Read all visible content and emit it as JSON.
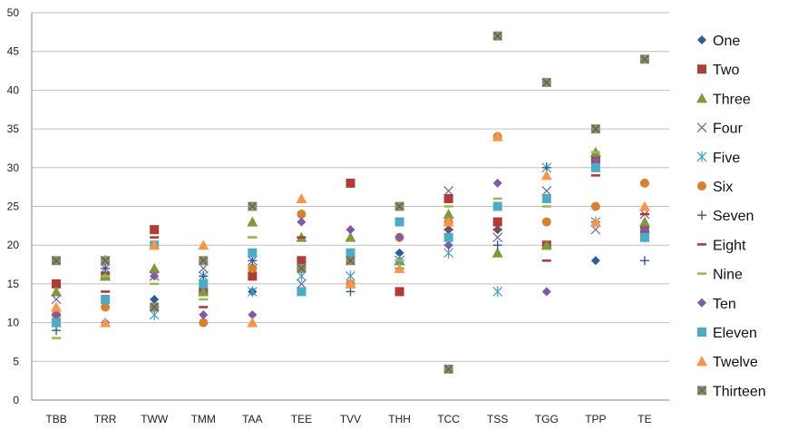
{
  "chart_data": {
    "type": "scatter",
    "title": "",
    "xlabel": "",
    "ylabel": "",
    "categories": [
      "TBB",
      "TRR",
      "TWW",
      "TMM",
      "TAA",
      "TEE",
      "TVV",
      "THH",
      "TCC",
      "TSS",
      "TGG",
      "TPP",
      "TE"
    ],
    "ylim": [
      0,
      50
    ],
    "yticks": [
      0,
      5,
      10,
      15,
      20,
      25,
      30,
      35,
      40,
      45,
      50
    ],
    "grid": "horizontal",
    "legend_position": "right",
    "series": [
      {
        "name": "One",
        "color": "#2E5C9A",
        "marker": "diamond",
        "values": [
          15,
          10,
          13,
          14,
          14,
          17,
          18,
          19,
          22,
          22,
          20,
          18,
          22
        ]
      },
      {
        "name": "Two",
        "color": "#B23B36",
        "marker": "square",
        "values": [
          15,
          16,
          22,
          14,
          16,
          18,
          28,
          14,
          26,
          23,
          20,
          31,
          22
        ]
      },
      {
        "name": "Three",
        "color": "#7E9A3A",
        "marker": "triangle",
        "values": [
          14,
          16,
          17,
          14,
          23,
          21,
          21,
          18,
          24,
          19,
          20,
          32,
          23
        ]
      },
      {
        "name": "Four",
        "color": "#7060A8",
        "marker": "x",
        "values": [
          13,
          17,
          16,
          17,
          18,
          15,
          18,
          18,
          27,
          21,
          27,
          22,
          24
        ]
      },
      {
        "name": "Five",
        "color": "#3E9EC2",
        "marker": "asterisk",
        "values": [
          10,
          18,
          11,
          16,
          14,
          16,
          16,
          18,
          19,
          14,
          30,
          23,
          21
        ]
      },
      {
        "name": "Six",
        "color": "#D4822E",
        "marker": "circle",
        "values": [
          11,
          12,
          12,
          10,
          17,
          24,
          15,
          21,
          23,
          34,
          23,
          25,
          28
        ]
      },
      {
        "name": "Seven",
        "color": "#2E5C9A",
        "marker": "plus",
        "values": [
          9,
          17,
          12,
          16,
          18,
          17,
          14,
          17,
          20,
          20,
          30,
          23,
          18
        ]
      },
      {
        "name": "Eight",
        "color": "#B23B36",
        "marker": "dash",
        "values": [
          11,
          14,
          21,
          12,
          21,
          21,
          18,
          18,
          22,
          22,
          18,
          29,
          24
        ]
      },
      {
        "name": "Nine",
        "color": "#9BBB59",
        "marker": "dash",
        "values": [
          8,
          16,
          15,
          13,
          21,
          17,
          18,
          18,
          25,
          26,
          25,
          32,
          22
        ]
      },
      {
        "name": "Ten",
        "color": "#7E5AA8",
        "marker": "diamond",
        "values": [
          11,
          10,
          16,
          11,
          11,
          23,
          22,
          21,
          20,
          28,
          14,
          31,
          22
        ]
      },
      {
        "name": "Eleven",
        "color": "#4BACC6",
        "marker": "square",
        "values": [
          10,
          13,
          20,
          15,
          19,
          14,
          19,
          23,
          21,
          25,
          26,
          30,
          21
        ]
      },
      {
        "name": "Twelve",
        "color": "#F79646",
        "marker": "triangle",
        "values": [
          12,
          10,
          20,
          20,
          10,
          26,
          15,
          17,
          23,
          34,
          29,
          23,
          25
        ]
      },
      {
        "name": "Thirteen",
        "color": "#8C8C6C",
        "marker": "boxx",
        "values": [
          18,
          18,
          12,
          18,
          25,
          17,
          18,
          25,
          4,
          47,
          41,
          35,
          44
        ]
      }
    ]
  }
}
